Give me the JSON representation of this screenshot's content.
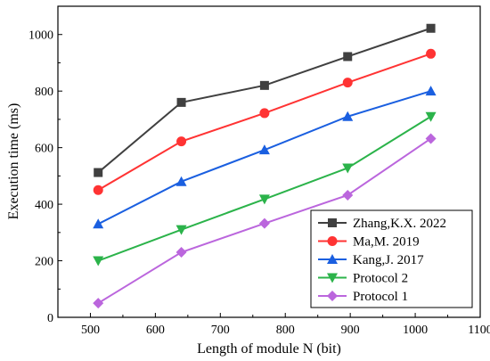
{
  "chart_data": {
    "type": "line",
    "xlabel": "Length of module N (bit)",
    "ylabel": "Execution time (ms)",
    "xlim": [
      450,
      1100
    ],
    "ylim": [
      0,
      1100
    ],
    "xticks": [
      500,
      600,
      700,
      800,
      900,
      1000,
      1100
    ],
    "yticks": [
      0,
      200,
      400,
      600,
      800,
      1000
    ],
    "x": [
      512,
      640,
      768,
      896,
      1024
    ],
    "legend_position": "bottom-right",
    "grid": false,
    "series": [
      {
        "name": "Zhang,K.X. 2022",
        "color": "#404040",
        "marker": "square",
        "values": [
          512,
          760,
          820,
          922,
          1022
        ]
      },
      {
        "name": "Ma,M. 2019",
        "color": "#ff3333",
        "marker": "circle",
        "values": [
          450,
          622,
          722,
          830,
          932
        ]
      },
      {
        "name": "Kang,J. 2017",
        "color": "#1a5fe0",
        "marker": "triangle-up",
        "values": [
          330,
          480,
          592,
          710,
          800
        ]
      },
      {
        "name": "Protocol 2",
        "color": "#2bb34a",
        "marker": "triangle-down",
        "values": [
          200,
          310,
          418,
          528,
          710
        ]
      },
      {
        "name": "Protocol 1",
        "color": "#bb66dd",
        "marker": "diamond",
        "values": [
          50,
          230,
          332,
          432,
          632
        ]
      }
    ]
  }
}
